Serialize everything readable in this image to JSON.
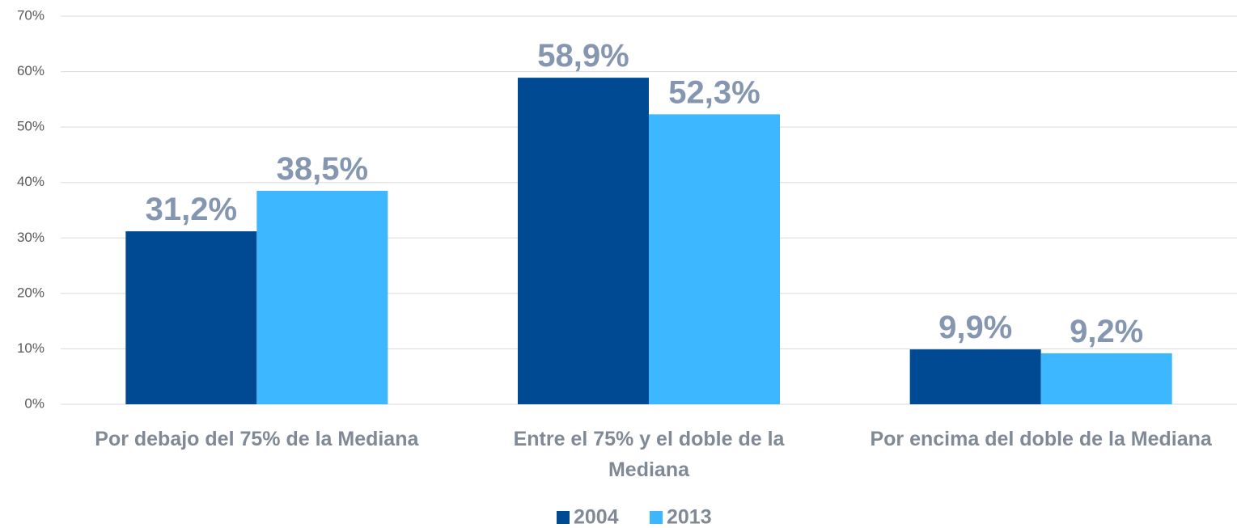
{
  "chart_data": {
    "type": "bar",
    "categories": [
      "Por debajo del 75% de la Mediana",
      "Entre el 75% y el doble de la Mediana",
      "Por encima del doble de la Mediana"
    ],
    "series": [
      {
        "name": "2004",
        "color": "#004a94",
        "values": [
          31.2,
          58.9,
          9.9
        ],
        "value_labels": [
          "31,2%",
          "58,9%",
          "9,9%"
        ]
      },
      {
        "name": "2013",
        "color": "#3db7ff",
        "values": [
          38.5,
          52.3,
          9.2
        ],
        "value_labels": [
          "38,5%",
          "52,3%",
          "9,2%"
        ]
      }
    ],
    "ylim": [
      0,
      70
    ],
    "yticks": [
      {
        "value": 0,
        "label": "0%"
      },
      {
        "value": 10,
        "label": "10%"
      },
      {
        "value": 20,
        "label": "20%"
      },
      {
        "value": 30,
        "label": "30%"
      },
      {
        "value": 40,
        "label": "40%"
      },
      {
        "value": 50,
        "label": "50%"
      },
      {
        "value": 60,
        "label": "60%"
      },
      {
        "value": 70,
        "label": "70%"
      }
    ],
    "grid": true,
    "legend": "bottom"
  }
}
